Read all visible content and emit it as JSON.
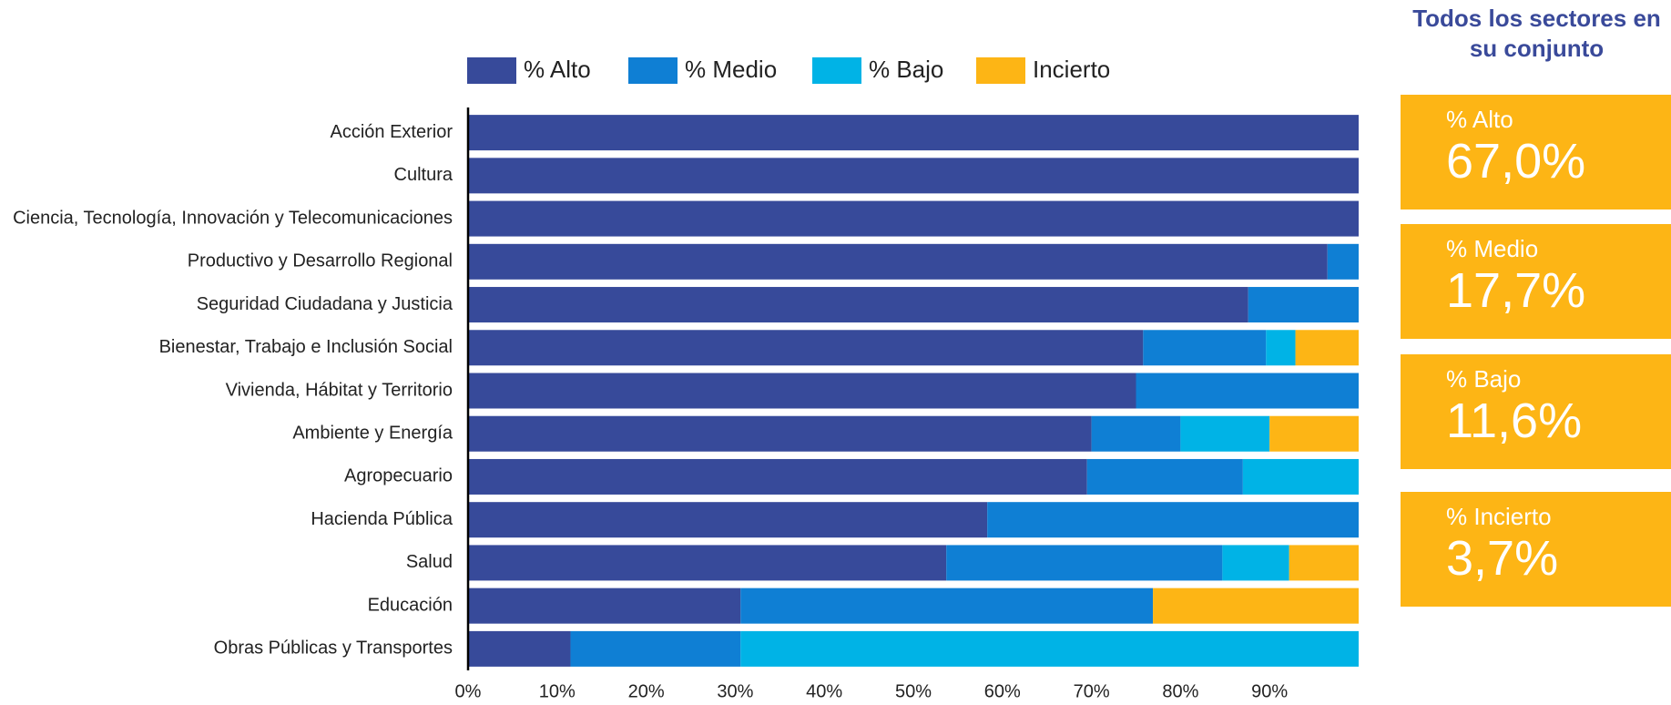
{
  "chart_data": {
    "type": "stacked_bar_horizontal",
    "categories": [
      "Acción Exterior",
      "Cultura",
      "Ciencia, Tecnología, Innovación y Telecomunicaciones",
      "Productivo y Desarrollo Regional",
      "Seguridad Ciudadana y Justicia",
      "Bienestar, Trabajo e Inclusión Social",
      "Vivienda, Hábitat y Territorio",
      "Ambiente y Energía",
      "Agropecuario",
      "Hacienda Pública",
      "Salud",
      "Educación",
      "Obras Públicas y Transportes"
    ],
    "series": [
      {
        "name": "% Alto",
        "color": "#374a9a",
        "values": [
          100,
          100,
          100,
          96.5,
          87.6,
          75.8,
          75.0,
          70.0,
          69.5,
          58.3,
          53.7,
          30.6,
          11.5
        ]
      },
      {
        "name": "% Medio",
        "color": "#0f7fd4",
        "values": [
          0,
          0,
          0,
          3.5,
          12.4,
          13.8,
          25.0,
          10.0,
          17.5,
          41.7,
          31.0,
          46.3,
          19.1
        ]
      },
      {
        "name": "% Bajo",
        "color": "#00b3e6",
        "values": [
          0,
          0,
          0,
          0,
          0,
          3.3,
          0,
          10.0,
          13.0,
          0,
          7.5,
          0,
          69.4
        ]
      },
      {
        "name": "Incierto",
        "color": "#fdb515",
        "values": [
          0,
          0,
          0,
          0,
          0,
          7.1,
          0,
          10.0,
          0,
          0,
          7.8,
          23.1,
          0
        ]
      }
    ],
    "xlim": [
      0,
      100
    ],
    "xticks": [
      {
        "value": 0,
        "label": "0%"
      },
      {
        "value": 10,
        "label": "10%"
      },
      {
        "value": 20,
        "label": "20%"
      },
      {
        "value": 30,
        "label": "30%"
      },
      {
        "value": 40,
        "label": "40%"
      },
      {
        "value": 50,
        "label": "50%"
      },
      {
        "value": 60,
        "label": "60%"
      },
      {
        "value": 70,
        "label": "70%"
      },
      {
        "value": 80,
        "label": "80%"
      },
      {
        "value": 90,
        "label": "90%"
      }
    ],
    "legend": "top"
  },
  "summary": {
    "title": "Todos los sectores en su conjunto",
    "items": [
      {
        "label": "% Alto",
        "value": "67,0%"
      },
      {
        "label": "% Medio",
        "value": "17,7%"
      },
      {
        "label": "% Bajo",
        "value": "11,6%"
      },
      {
        "label": "% Incierto",
        "value": "3,7%"
      }
    ]
  }
}
